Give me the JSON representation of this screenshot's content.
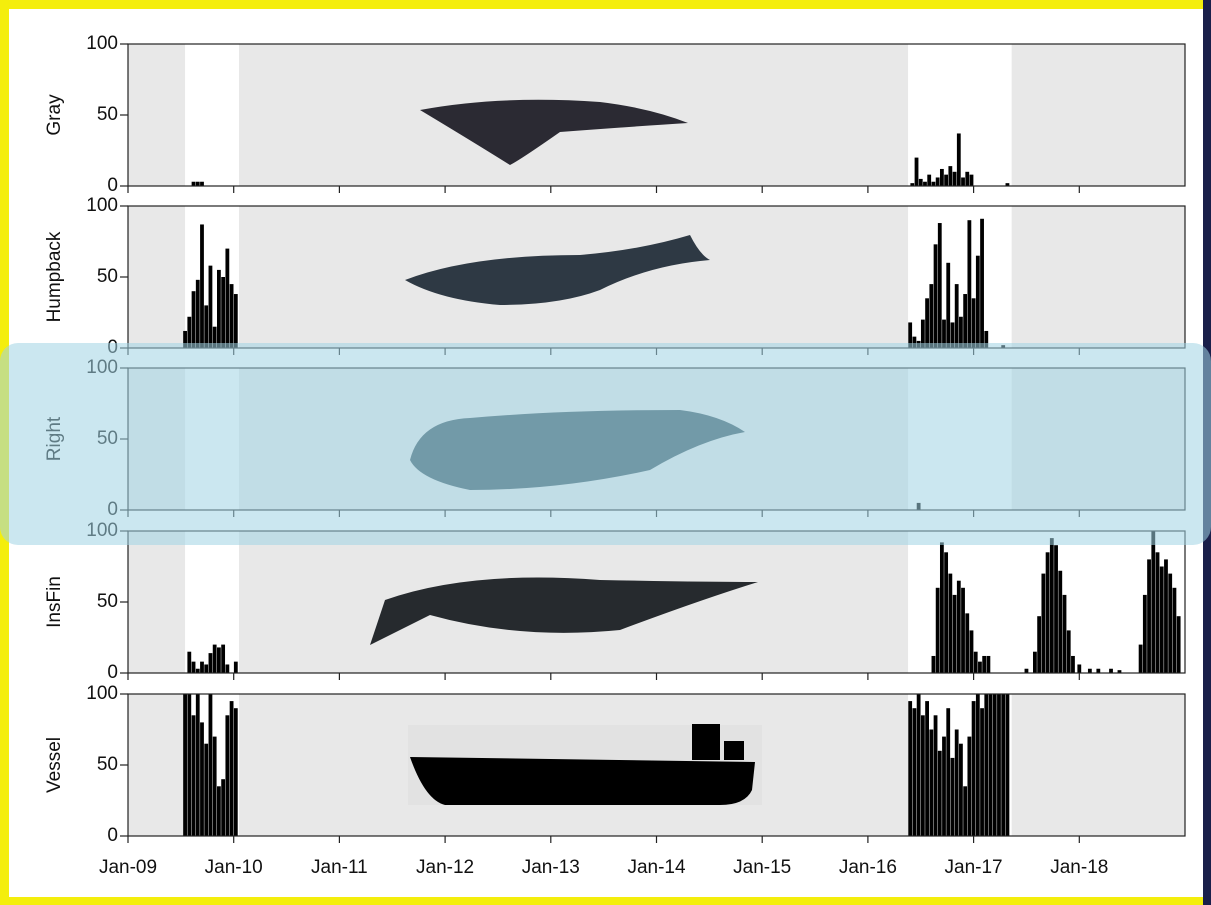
{
  "chart_data": {
    "type": "bar",
    "xlim": [
      2009,
      2019
    ],
    "xticks": [
      {
        "value": 2009,
        "label": "Jan-09"
      },
      {
        "value": 2010,
        "label": "Jan-10"
      },
      {
        "value": 2011,
        "label": "Jan-11"
      },
      {
        "value": 2012,
        "label": "Jan-12"
      },
      {
        "value": 2013,
        "label": "Jan-13"
      },
      {
        "value": 2014,
        "label": "Jan-14"
      },
      {
        "value": 2015,
        "label": "Jan-15"
      },
      {
        "value": 2016,
        "label": "Jan-16"
      },
      {
        "value": 2017,
        "label": "Jan-17"
      },
      {
        "value": 2018,
        "label": "Jan-18"
      }
    ],
    "ylim": [
      0,
      100
    ],
    "yticks": [
      0,
      50,
      100
    ],
    "series": [
      {
        "name": "Gray",
        "color": "#000000",
        "recording_periods": [
          [
            2009.54,
            2010.05
          ],
          [
            2016.38,
            2017.36
          ]
        ],
        "x": [
          2009.62,
          2009.66,
          2009.7,
          2016.42,
          2016.46,
          2016.5,
          2016.54,
          2016.58,
          2016.62,
          2016.66,
          2016.7,
          2016.74,
          2016.78,
          2016.82,
          2016.86,
          2016.9,
          2016.94,
          2016.98,
          2017.32
        ],
        "values": [
          3,
          3,
          3,
          2,
          20,
          5,
          3,
          8,
          3,
          6,
          12,
          8,
          14,
          10,
          37,
          6,
          10,
          8,
          2
        ]
      },
      {
        "name": "Humpback",
        "color": "#000000",
        "recording_periods": [
          [
            2009.54,
            2010.05
          ],
          [
            2016.38,
            2017.36
          ]
        ],
        "x": [
          2009.54,
          2009.58,
          2009.62,
          2009.66,
          2009.7,
          2009.74,
          2009.78,
          2009.82,
          2009.86,
          2009.9,
          2009.94,
          2009.98,
          2010.02,
          2016.4,
          2016.44,
          2016.48,
          2016.52,
          2016.56,
          2016.6,
          2016.64,
          2016.68,
          2016.72,
          2016.76,
          2016.8,
          2016.84,
          2016.88,
          2016.92,
          2016.96,
          2017.0,
          2017.04,
          2017.08,
          2017.12,
          2017.28
        ],
        "values": [
          12,
          22,
          40,
          48,
          87,
          30,
          58,
          15,
          55,
          50,
          70,
          45,
          38,
          18,
          8,
          5,
          20,
          35,
          45,
          73,
          88,
          20,
          60,
          18,
          45,
          22,
          38,
          90,
          35,
          65,
          91,
          12,
          2
        ]
      },
      {
        "name": "Right",
        "color": "#000000",
        "recording_periods": [
          [
            2009.54,
            2010.05
          ],
          [
            2016.38,
            2017.36
          ]
        ],
        "x": [
          2016.48
        ],
        "values": [
          5
        ]
      },
      {
        "name": "InsFin",
        "color": "#000000",
        "recording_periods": [
          [
            2009.54,
            2010.05
          ],
          [
            2016.38,
            2019
          ]
        ],
        "x": [
          2009.58,
          2009.62,
          2009.66,
          2009.7,
          2009.74,
          2009.78,
          2009.82,
          2009.86,
          2009.9,
          2009.94,
          2010.02,
          2016.62,
          2016.66,
          2016.7,
          2016.74,
          2016.78,
          2016.82,
          2016.86,
          2016.9,
          2016.94,
          2016.98,
          2017.02,
          2017.06,
          2017.1,
          2017.14,
          2017.5,
          2017.58,
          2017.62,
          2017.66,
          2017.7,
          2017.74,
          2017.78,
          2017.82,
          2017.86,
          2017.9,
          2017.94,
          2018.0,
          2018.1,
          2018.18,
          2018.3,
          2018.38,
          2018.58,
          2018.62,
          2018.66,
          2018.7,
          2018.74,
          2018.78,
          2018.82,
          2018.86,
          2018.9,
          2018.94
        ],
        "values": [
          15,
          8,
          3,
          8,
          6,
          14,
          20,
          18,
          20,
          6,
          8,
          12,
          60,
          92,
          85,
          70,
          55,
          65,
          60,
          42,
          30,
          15,
          8,
          12,
          12,
          3,
          15,
          40,
          70,
          85,
          95,
          90,
          72,
          55,
          30,
          12,
          6,
          3,
          3,
          3,
          2,
          20,
          55,
          80,
          100,
          85,
          75,
          80,
          70,
          60,
          40
        ]
      },
      {
        "name": "Vessel",
        "color": "#000000",
        "recording_periods": [
          [
            2009.54,
            2010.05
          ],
          [
            2016.38,
            2017.36
          ]
        ],
        "x": [
          2009.54,
          2009.58,
          2009.62,
          2009.66,
          2009.7,
          2009.74,
          2009.78,
          2009.82,
          2009.86,
          2009.9,
          2009.94,
          2009.98,
          2010.02,
          2016.4,
          2016.44,
          2016.48,
          2016.52,
          2016.56,
          2016.6,
          2016.64,
          2016.68,
          2016.72,
          2016.76,
          2016.8,
          2016.84,
          2016.88,
          2016.92,
          2016.96,
          2017.0,
          2017.04,
          2017.08,
          2017.12,
          2017.16,
          2017.2,
          2017.24,
          2017.28,
          2017.32
        ],
        "values": [
          100,
          100,
          85,
          100,
          80,
          65,
          100,
          70,
          35,
          40,
          85,
          95,
          90,
          95,
          90,
          100,
          85,
          95,
          75,
          85,
          60,
          70,
          90,
          55,
          75,
          65,
          35,
          70,
          95,
          100,
          90,
          100,
          100,
          100,
          100,
          100,
          100
        ]
      }
    ]
  }
}
